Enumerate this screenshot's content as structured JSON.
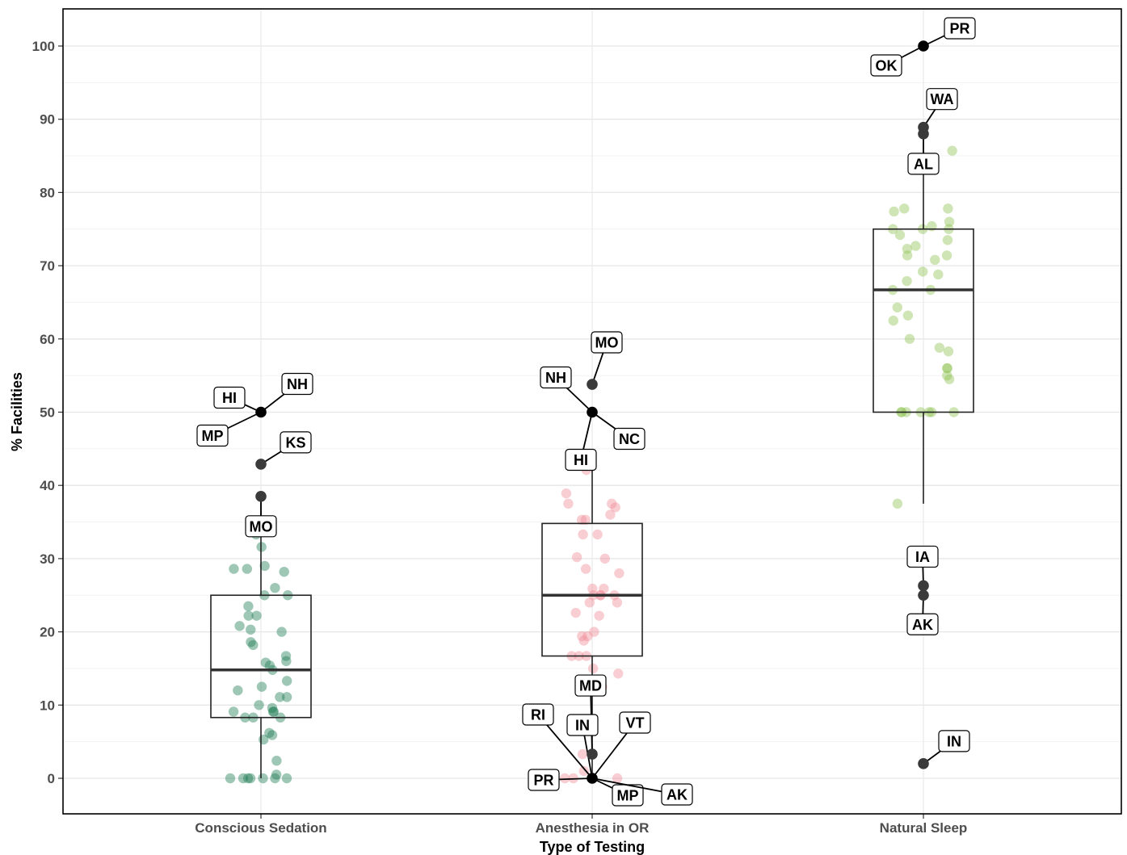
{
  "chart_data": {
    "type": "box",
    "xlabel": "Type of Testing",
    "ylabel": "% Facilities",
    "ylim": [
      -5,
      105
    ],
    "yticks": [
      0,
      10,
      20,
      30,
      40,
      50,
      60,
      70,
      80,
      90,
      100
    ],
    "grid": true,
    "categories": [
      "Conscious Sedation",
      "Anesthesia in OR",
      "Natural Sleep"
    ],
    "colors": [
      "#1b7a52",
      "#f08a96",
      "#8cc152"
    ],
    "boxes": [
      {
        "category": "Conscious Sedation",
        "q1": 8.3,
        "median": 14.8,
        "q3": 25.0,
        "whisker_low": 0,
        "whisker_high": 38.5
      },
      {
        "category": "Anesthesia in OR",
        "q1": 16.7,
        "median": 25.0,
        "q3": 34.8,
        "whisker_low": 0,
        "whisker_high": 42.9
      },
      {
        "category": "Natural Sleep",
        "q1": 50.0,
        "median": 66.7,
        "q3": 75.0,
        "whisker_low": 37.5,
        "whisker_high": 85.7
      }
    ],
    "points": [
      [
        0,
        0,
        0,
        0,
        0,
        0,
        0,
        0.5,
        2.4,
        5.3,
        5.9,
        6.2,
        8.3,
        8.3,
        8.3,
        9.1,
        9.1,
        9.1,
        9.6,
        10.0,
        11.1,
        11.1,
        12.0,
        12.5,
        13.3,
        14.8,
        15.4,
        15.8,
        16.0,
        16.7,
        18.2,
        18.6,
        20.0,
        20.3,
        20.8,
        22.2,
        22.2,
        23.5,
        25.0,
        25.0,
        26.0,
        28.2,
        28.6,
        28.6,
        29.0,
        31.6,
        33.3
      ],
      [
        0,
        0,
        0,
        1.0,
        3.3,
        12.5,
        14.3,
        15.0,
        16.7,
        16.7,
        16.7,
        18.8,
        19.4,
        19.4,
        20.0,
        22.2,
        22.6,
        24.0,
        24.0,
        25.0,
        25.0,
        25.0,
        25.0,
        25.9,
        25.9,
        28.0,
        28.6,
        30.0,
        30.2,
        33.3,
        33.3,
        35.3,
        35.3,
        36.0,
        37.0,
        37.5,
        37.5,
        38.9,
        42.1,
        42.9
      ],
      [
        37.5,
        50.0,
        50.0,
        50.0,
        50.0,
        50.0,
        50.0,
        50.0,
        54.5,
        55.0,
        56.0,
        56.0,
        58.3,
        58.8,
        60.0,
        62.5,
        63.2,
        64.3,
        66.7,
        66.7,
        67.9,
        68.8,
        69.2,
        70.8,
        71.4,
        71.4,
        72.3,
        72.7,
        73.5,
        74.2,
        75.0,
        75.0,
        75.0,
        75.4,
        76.0,
        77.4,
        77.8,
        77.8,
        85.7
      ]
    ],
    "outliers": [
      {
        "category": "Conscious Sedation",
        "value": 50.0
      },
      {
        "category": "Conscious Sedation",
        "value": 42.9
      },
      {
        "category": "Conscious Sedation",
        "value": 38.5
      },
      {
        "category": "Anesthesia in OR",
        "value": 53.8
      },
      {
        "category": "Anesthesia in OR",
        "value": 50.0
      },
      {
        "category": "Anesthesia in OR",
        "value": 3.3
      },
      {
        "category": "Anesthesia in OR",
        "value": 0
      },
      {
        "category": "Natural Sleep",
        "value": 100.0
      },
      {
        "category": "Natural Sleep",
        "value": 88.9
      },
      {
        "category": "Natural Sleep",
        "value": 88.0
      },
      {
        "category": "Natural Sleep",
        "value": 26.3
      },
      {
        "category": "Natural Sleep",
        "value": 25.0
      },
      {
        "category": "Natural Sleep",
        "value": 2.0
      }
    ],
    "annotations": [
      {
        "category": "Conscious Sedation",
        "text": "NH",
        "value": 50.0
      },
      {
        "category": "Conscious Sedation",
        "text": "HI",
        "value": 50.0
      },
      {
        "category": "Conscious Sedation",
        "text": "MP",
        "value": 50.0
      },
      {
        "category": "Conscious Sedation",
        "text": "KS",
        "value": 42.9
      },
      {
        "category": "Conscious Sedation",
        "text": "MO",
        "value": 38.5
      },
      {
        "category": "Anesthesia in OR",
        "text": "MO",
        "value": 53.8
      },
      {
        "category": "Anesthesia in OR",
        "text": "NH",
        "value": 50.0
      },
      {
        "category": "Anesthesia in OR",
        "text": "NC",
        "value": 50.0
      },
      {
        "category": "Anesthesia in OR",
        "text": "HI",
        "value": 50.0
      },
      {
        "category": "Anesthesia in OR",
        "text": "MD",
        "value": 3.3
      },
      {
        "category": "Anesthesia in OR",
        "text": "RI",
        "value": 0
      },
      {
        "category": "Anesthesia in OR",
        "text": "IN",
        "value": 0
      },
      {
        "category": "Anesthesia in OR",
        "text": "VT",
        "value": 0
      },
      {
        "category": "Anesthesia in OR",
        "text": "PR",
        "value": 0
      },
      {
        "category": "Anesthesia in OR",
        "text": "MP",
        "value": 0
      },
      {
        "category": "Anesthesia in OR",
        "text": "AK",
        "value": 0
      },
      {
        "category": "Natural Sleep",
        "text": "PR",
        "value": 100.0
      },
      {
        "category": "Natural Sleep",
        "text": "OK",
        "value": 100.0
      },
      {
        "category": "Natural Sleep",
        "text": "WA",
        "value": 88.9
      },
      {
        "category": "Natural Sleep",
        "text": "AL",
        "value": 88.0
      },
      {
        "category": "Natural Sleep",
        "text": "IA",
        "value": 26.3
      },
      {
        "category": "Natural Sleep",
        "text": "AK",
        "value": 25.0
      },
      {
        "category": "Natural Sleep",
        "text": "IN",
        "value": 2.0
      }
    ]
  }
}
